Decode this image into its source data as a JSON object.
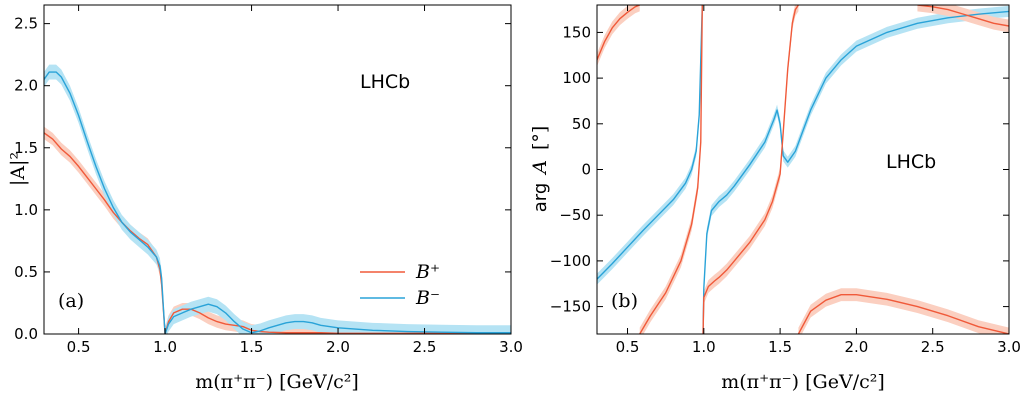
{
  "colors": {
    "bplus": "#f05a3a",
    "bplus_band": "#fbcfc0",
    "bminus": "#2aa3d8",
    "bminus_band": "#b5e3f4"
  },
  "chart_data": [
    {
      "type": "line",
      "panel_tag": "(a)",
      "experiment_label": "LHCb",
      "xlabel": "m(π⁺π⁻) [GeV/c²]",
      "ylabel": "|A|²",
      "xlim": [
        0.3,
        3.0
      ],
      "ylim": [
        0.0,
        2.65
      ],
      "xticks": [
        "0.5",
        "1.0",
        "1.5",
        "2.0",
        "2.5",
        "3.0"
      ],
      "yticks": [
        "0.0",
        "0.5",
        "1.0",
        "1.5",
        "2.0",
        "2.5"
      ],
      "legend": {
        "position": "lower-right",
        "entries": [
          "B⁺",
          "B⁻"
        ]
      },
      "series": [
        {
          "name": "B⁺",
          "x": [
            0.3,
            0.35,
            0.4,
            0.45,
            0.5,
            0.55,
            0.6,
            0.65,
            0.7,
            0.75,
            0.8,
            0.85,
            0.9,
            0.95,
            0.97,
            0.98,
            0.99,
            1.0,
            1.02,
            1.05,
            1.1,
            1.15,
            1.2,
            1.25,
            1.3,
            1.35,
            1.4,
            1.45,
            1.5,
            1.55,
            1.6,
            1.7,
            1.8,
            1.9,
            2.0,
            2.2,
            2.4,
            2.6,
            2.8,
            3.0
          ],
          "y": [
            1.62,
            1.57,
            1.49,
            1.43,
            1.35,
            1.26,
            1.17,
            1.08,
            0.98,
            0.9,
            0.83,
            0.77,
            0.72,
            0.62,
            0.52,
            0.4,
            0.2,
            0.0,
            0.1,
            0.17,
            0.2,
            0.2,
            0.17,
            0.13,
            0.1,
            0.08,
            0.07,
            0.06,
            0.03,
            0.02,
            0.015,
            0.01,
            0.01,
            0.01,
            0.005,
            0.005,
            0.005,
            0.005,
            0.005,
            0.005
          ],
          "band": 0.05
        },
        {
          "name": "B⁻",
          "x": [
            0.3,
            0.33,
            0.37,
            0.4,
            0.45,
            0.5,
            0.55,
            0.6,
            0.65,
            0.7,
            0.75,
            0.8,
            0.85,
            0.9,
            0.95,
            0.97,
            0.98,
            0.99,
            1.0,
            1.02,
            1.05,
            1.1,
            1.15,
            1.2,
            1.25,
            1.3,
            1.35,
            1.4,
            1.45,
            1.5,
            1.55,
            1.6,
            1.65,
            1.7,
            1.75,
            1.8,
            1.85,
            1.9,
            2.0,
            2.2,
            2.4,
            2.6,
            2.8,
            3.0
          ],
          "y": [
            2.05,
            2.11,
            2.11,
            2.07,
            1.94,
            1.76,
            1.55,
            1.35,
            1.17,
            1.02,
            0.9,
            0.82,
            0.76,
            0.7,
            0.62,
            0.55,
            0.45,
            0.22,
            0.0,
            0.08,
            0.14,
            0.17,
            0.2,
            0.22,
            0.24,
            0.22,
            0.17,
            0.1,
            0.04,
            0.01,
            0.025,
            0.05,
            0.07,
            0.09,
            0.1,
            0.1,
            0.09,
            0.07,
            0.05,
            0.03,
            0.02,
            0.015,
            0.01,
            0.01
          ],
          "band": 0.06
        }
      ]
    },
    {
      "type": "line",
      "panel_tag": "(b)",
      "experiment_label": "LHCb",
      "xlabel": "m(π⁺π⁻) [GeV/c²]",
      "ylabel_prefix": "arg",
      "ylabel_var": "A",
      "ylabel_unit": "[°]",
      "xlim": [
        0.3,
        3.0
      ],
      "ylim": [
        -180,
        180
      ],
      "xticks": [
        "0.5",
        "1.0",
        "1.5",
        "2.0",
        "2.5",
        "3.0"
      ],
      "yticks": [
        "−150",
        "−100",
        "−50",
        "0",
        "50",
        "100",
        "150"
      ],
      "series": [
        {
          "name": "B⁻",
          "segments": [
            {
              "x": [
                0.3,
                0.4,
                0.5,
                0.6,
                0.7,
                0.8,
                0.88,
                0.92,
                0.95,
                0.97,
                0.98,
                0.99
              ],
              "y": [
                -120,
                -103,
                -85,
                -67,
                -50,
                -33,
                -15,
                0,
                20,
                60,
                120,
                180
              ]
            },
            {
              "x": [
                0.995,
                1.0,
                1.02,
                1.05,
                1.1,
                1.15,
                1.2,
                1.3,
                1.4,
                1.46,
                1.48,
                1.5,
                1.52,
                1.55,
                1.6,
                1.7,
                1.8,
                1.9,
                2.0,
                2.2,
                2.4,
                2.6,
                2.8,
                3.0
              ],
              "y": [
                -180,
                -130,
                -70,
                -45,
                -35,
                -28,
                -18,
                5,
                30,
                55,
                65,
                50,
                15,
                8,
                20,
                65,
                100,
                120,
                135,
                150,
                160,
                166,
                170,
                173
              ]
            }
          ],
          "band": 6
        },
        {
          "name": "B⁺",
          "segments": [
            {
              "x": [
                0.3,
                0.35,
                0.4,
                0.45,
                0.5,
                0.55,
                0.58
              ],
              "y": [
                120,
                140,
                155,
                165,
                172,
                178,
                180
              ]
            },
            {
              "x": [
                0.58,
                0.65,
                0.75,
                0.85,
                0.92,
                0.96,
                0.98,
                0.99
              ],
              "y": [
                -180,
                -160,
                -135,
                -100,
                -60,
                -20,
                30,
                180
              ]
            },
            {
              "x": [
                0.995,
                1.0,
                1.03,
                1.07,
                1.1,
                1.15,
                1.2,
                1.3,
                1.4,
                1.45,
                1.5,
                1.52,
                1.55,
                1.58,
                1.6,
                1.62
              ],
              "y": [
                -180,
                -140,
                -128,
                -122,
                -118,
                -110,
                -100,
                -80,
                -55,
                -35,
                -5,
                40,
                110,
                160,
                175,
                180
              ]
            },
            {
              "x": [
                1.62,
                1.7,
                1.8,
                1.9,
                2.0,
                2.2,
                2.4,
                2.6,
                2.8,
                3.0
              ],
              "y": [
                -180,
                -155,
                -143,
                -137,
                -137,
                -142,
                -150,
                -160,
                -172,
                -180
              ]
            },
            {
              "x": [
                2.4,
                2.5,
                2.6,
                2.7,
                2.8,
                2.9,
                3.0
              ],
              "y": [
                180,
                178,
                175,
                170,
                165,
                160,
                157
              ]
            }
          ],
          "band": 7
        }
      ]
    }
  ]
}
